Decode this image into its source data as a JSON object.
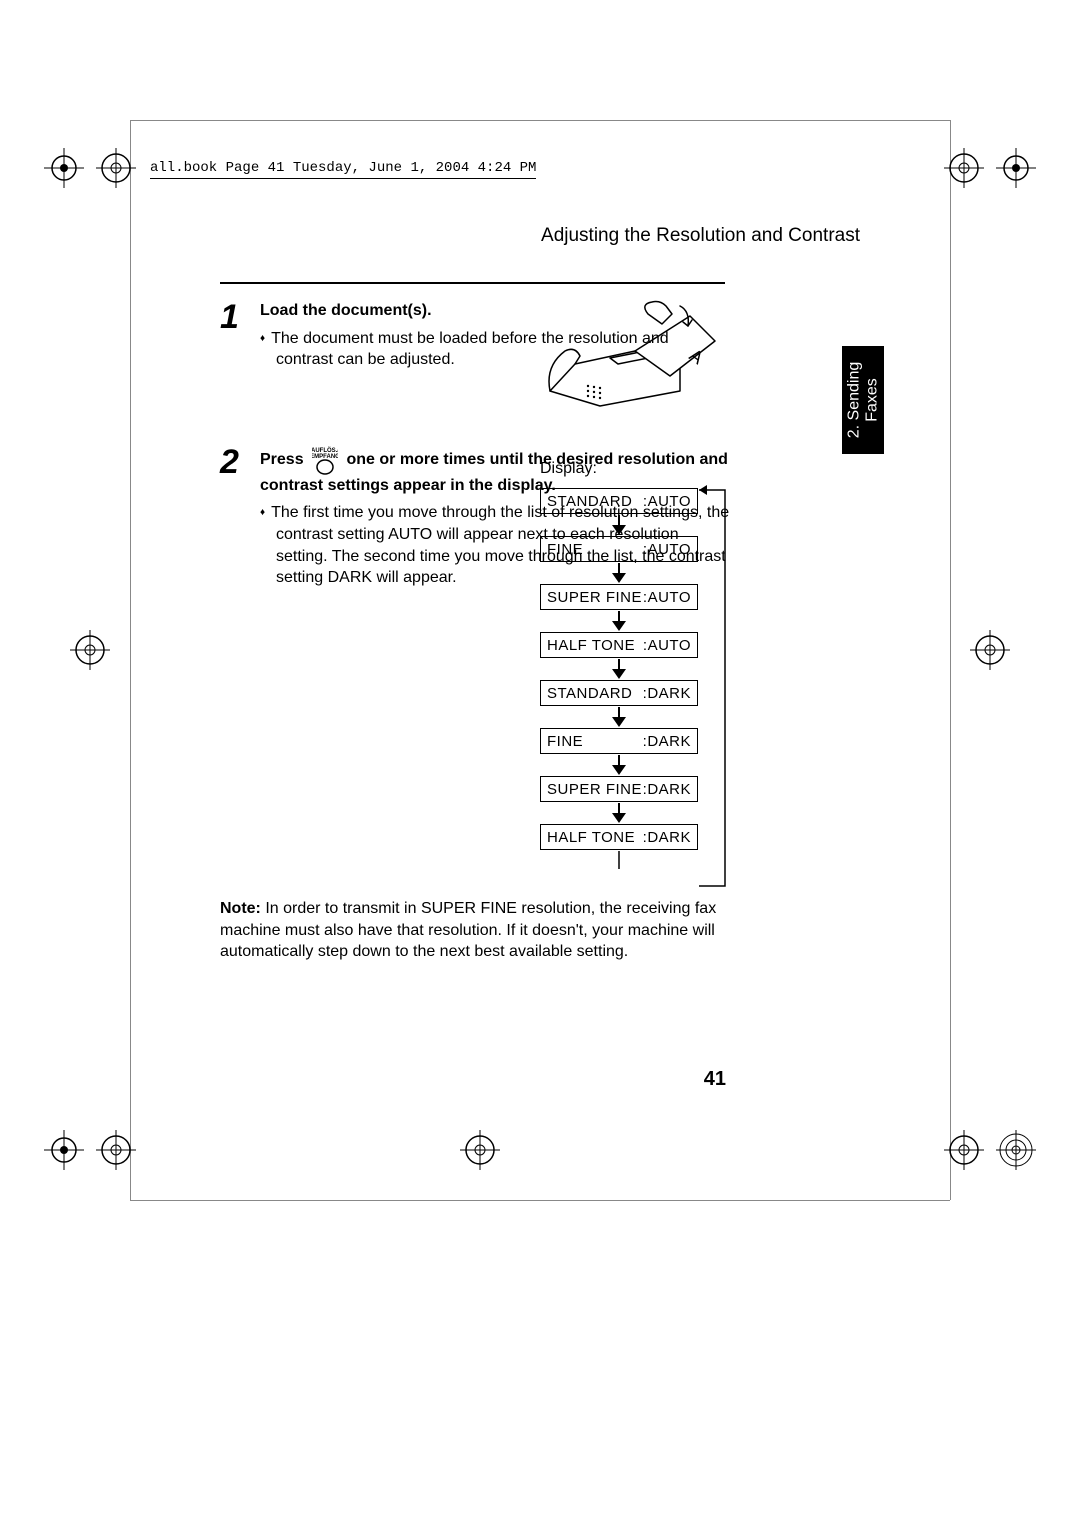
{
  "runhead": "all.book  Page 41  Tuesday, June 1, 2004  4:24 PM",
  "section_title": "Adjusting the Resolution and Contrast",
  "side_tab": "2. Sending\nFaxes",
  "step1": {
    "num": "1",
    "heading": "Load the document(s).",
    "bullet": "The document must be loaded before the resolution and contrast can be adjusted."
  },
  "step2": {
    "num": "2",
    "press_before": "Press ",
    "press_after": " one or more times until the desired resolution and contrast settings appear in the display.",
    "button_top": "AUFLÖS./",
    "button_bottom": "EMPFANG",
    "bullet": "The first time you move through the list of resolution settings, the contrast setting AUTO will appear next to each resolution setting. The second time you move through the list, the contrast setting DARK will appear."
  },
  "display": {
    "label": "Display:",
    "rows": [
      {
        "left": "STANDARD",
        "right": ":AUTO"
      },
      {
        "left": "FINE",
        "right": ":AUTO"
      },
      {
        "left": "SUPER FINE",
        "right": ":AUTO"
      },
      {
        "left": "HALF TONE",
        "right": ":AUTO"
      },
      {
        "left": "STANDARD",
        "right": ":DARK"
      },
      {
        "left": "FINE",
        "right": ":DARK"
      },
      {
        "left": "SUPER FINE",
        "right": ":DARK"
      },
      {
        "left": "HALF TONE",
        "right": ":DARK"
      }
    ]
  },
  "note_label": "Note:",
  "note_text": " In order to transmit in SUPER FINE resolution, the receiving fax machine must also have that resolution. If it doesn't, your machine will automatically step down to the next best available setting.",
  "page_number": "41",
  "colors": {
    "text": "#000000",
    "bg": "#ffffff",
    "tab_bg": "#000000",
    "tab_fg": "#ffffff"
  }
}
